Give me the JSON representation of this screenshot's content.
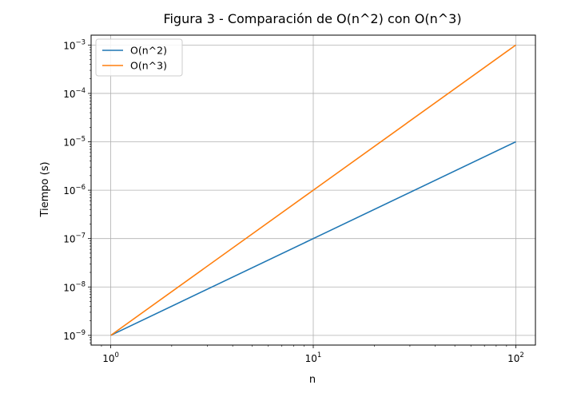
{
  "chart_data": {
    "type": "line",
    "title": "Figura 3 - Comparación de O(n^2) con O(n^3)",
    "xlabel": "n",
    "ylabel": "Tiempo (s)",
    "xscale": "log",
    "yscale": "log",
    "xlim": [
      0.8,
      125
    ],
    "ylim": [
      6.3e-10,
      0.0016
    ],
    "grid": true,
    "legend_position": "top-left",
    "x_ticks": [
      {
        "value": 1,
        "base": "10",
        "exp": "0"
      },
      {
        "value": 10,
        "base": "10",
        "exp": "1"
      },
      {
        "value": 100,
        "base": "10",
        "exp": "2"
      }
    ],
    "y_ticks": [
      {
        "value": 1e-09,
        "base": "10",
        "exp": "−9"
      },
      {
        "value": 1e-08,
        "base": "10",
        "exp": "−8"
      },
      {
        "value": 1e-07,
        "base": "10",
        "exp": "−7"
      },
      {
        "value": 1e-06,
        "base": "10",
        "exp": "−6"
      },
      {
        "value": 1e-05,
        "base": "10",
        "exp": "−5"
      },
      {
        "value": 0.0001,
        "base": "10",
        "exp": "−4"
      },
      {
        "value": 0.001,
        "base": "10",
        "exp": "−3"
      }
    ],
    "series": [
      {
        "name": "O(n^2)",
        "color": "#1f77b4",
        "x": [
          1,
          10,
          100
        ],
        "y": [
          1e-09,
          1e-07,
          1e-05
        ]
      },
      {
        "name": "O(n^3)",
        "color": "#ff7f0e",
        "x": [
          1,
          10,
          100
        ],
        "y": [
          1e-09,
          1e-06,
          0.001
        ]
      }
    ]
  }
}
